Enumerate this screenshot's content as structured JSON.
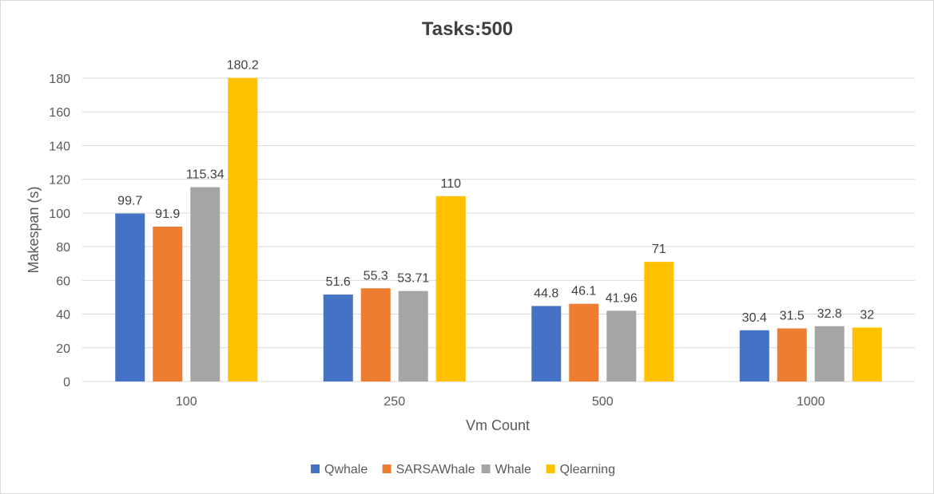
{
  "chart_data": {
    "type": "bar",
    "title": "Tasks:500",
    "xlabel": "Vm Count",
    "ylabel": "Makespan (s)",
    "categories": [
      "100",
      "250",
      "500",
      "1000"
    ],
    "ylim": [
      0,
      180
    ],
    "yticks": [
      0,
      20,
      40,
      60,
      80,
      100,
      120,
      140,
      160,
      180
    ],
    "grid": true,
    "legend_position": "bottom",
    "series": [
      {
        "name": "Qwhale",
        "color": "#4472c4",
        "values": [
          99.7,
          51.6,
          44.8,
          30.4
        ],
        "labels": [
          "99.7",
          "51.6",
          "44.8",
          "30.4"
        ]
      },
      {
        "name": "SARSAWhale",
        "color": "#ed7d31",
        "values": [
          91.9,
          55.3,
          46.1,
          31.5
        ],
        "labels": [
          "91.9",
          "55.3",
          "46.1",
          "31.5"
        ]
      },
      {
        "name": "Whale",
        "color": "#a5a5a5",
        "values": [
          115.34,
          53.71,
          41.96,
          32.8
        ],
        "labels": [
          "115.34",
          "53.71",
          "41.96",
          "32.8"
        ]
      },
      {
        "name": "Qlearning",
        "color": "#ffc000",
        "values": [
          180.2,
          110,
          71,
          32
        ],
        "labels": [
          "180.2",
          "110",
          "71",
          "32"
        ]
      }
    ]
  }
}
